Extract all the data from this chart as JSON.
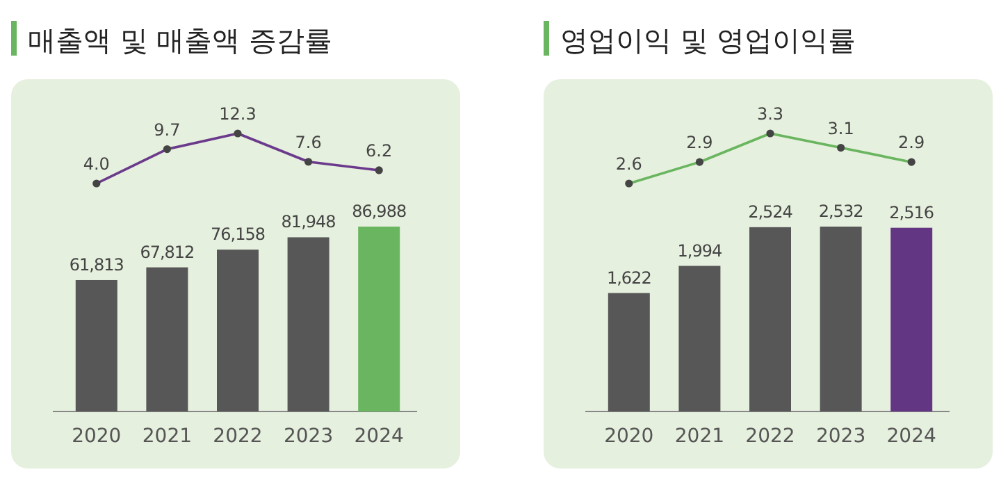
{
  "chart_data": [
    {
      "type": "bar",
      "categories": [
        "2020",
        "2021",
        "2022",
        "2023",
        "2024"
      ],
      "colors": [
        "#575757",
        "#575757",
        "#575757",
        "#575757",
        "#6ab55f"
      ],
      "values": [
        61813,
        67812,
        76158,
        81948,
        86988
      ],
      "value_labels": [
        "61,813",
        "67,812",
        "76,158",
        "81,948",
        "86,988"
      ]
    },
    {
      "type": "line",
      "title": "매출액 및 매출액 증감률",
      "categories": [
        null,
        null,
        null,
        null,
        null
      ],
      "color": "#6b3a8c",
      "marker": "circle",
      "values": [
        4.0,
        9.7,
        12.3,
        7.6,
        6.2
      ],
      "value_labels": [
        "4.0",
        "9.7",
        "12.3",
        "7.6",
        "6.2"
      ]
    },
    {
      "type": "bar",
      "categories": [
        "2020",
        "2021",
        "2022",
        "2023",
        "2024"
      ],
      "colors": [
        "#575757",
        "#575757",
        "#575757",
        "#575757",
        "#633683"
      ],
      "values": [
        1622,
        1994,
        2524,
        2532,
        2516
      ],
      "value_labels": [
        "1,622",
        "1,994",
        "2,524",
        "2,532",
        "2,516"
      ]
    },
    {
      "type": "line",
      "title": "영업이익 및 영업이익률",
      "categories": [
        null,
        null,
        null,
        null,
        null
      ],
      "color": "#6ab55f",
      "marker": "circle",
      "values": [
        2.6,
        2.9,
        3.3,
        3.1,
        2.9
      ],
      "value_labels": [
        "2.6",
        "2.9",
        "3.3",
        "3.1",
        "2.9"
      ]
    }
  ]
}
